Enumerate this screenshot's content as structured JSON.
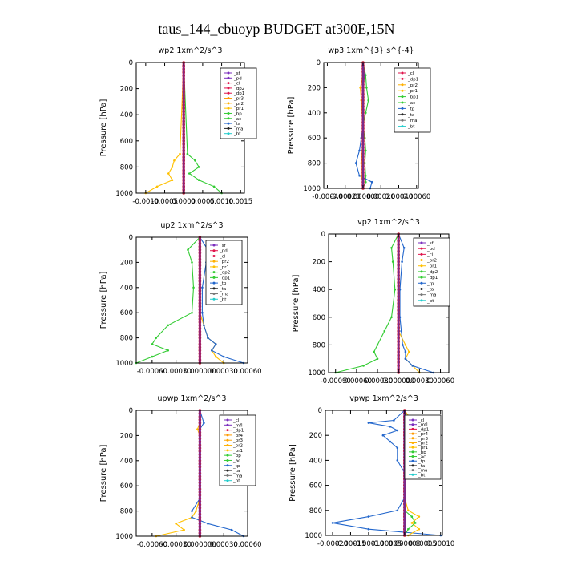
{
  "figure": {
    "title": "taus_144_cbuoyp  BUDGET at300E,15N"
  },
  "chart_data": [
    {
      "type": "line",
      "title": "wp2  1xm^2/s^3",
      "ylabel": "Pressure [hPa]",
      "xlim": [
        -0.00125,
        0.0016
      ],
      "ylim": [
        1000,
        0
      ],
      "xticks": [
        -0.001,
        -0.0005,
        0,
        0.0005,
        0.001,
        0.0015
      ],
      "xtick_labels": [
        "-0.0010",
        "-0.0005",
        "0.0000",
        "0.0005",
        "0.0010",
        "0.0015"
      ],
      "yticks": [
        0,
        200,
        400,
        600,
        800,
        1000
      ],
      "legend": [
        "_sf",
        "_pd",
        "_cl",
        "_dp2",
        "_dp1",
        "_pr3",
        "_pr2",
        "_pr1",
        "_bp",
        "_ac",
        "_ta",
        "_ma",
        "_bt"
      ],
      "colors": {
        "_sf": "#7b2fbe",
        "_pd": "#7b2fbe",
        "_cl": "#e0144c",
        "_dp2": "#e0144c",
        "_dp1": "#e0144c",
        "_pr3": "#ff9900",
        "_pr2": "#ffb000",
        "_pr1": "#ffc000",
        "_bp": "#33cc33",
        "_ac": "#33cc33",
        "_ta": "#2266cc",
        "_ma": "#222222",
        "_bt": "#22cccc"
      },
      "levels": [
        0,
        700,
        750,
        800,
        850,
        900,
        950,
        1000
      ],
      "series": [
        {
          "name": "_bp",
          "values": [
            0,
            0.0001,
            0.0003,
            0.0004,
            0.00015,
            0.0004,
            0.0008,
            0.001
          ]
        },
        {
          "name": "_pr1",
          "values": [
            0,
            -0.0001,
            -0.00025,
            -0.0003,
            -0.0004,
            -0.0003,
            -0.0007,
            -0.001
          ]
        },
        {
          "name": "_cl",
          "values": [
            0,
            0,
            0,
            0,
            0,
            0,
            0,
            0
          ]
        }
      ]
    },
    {
      "type": "line",
      "title": "wp3  1xm^{3} s^{-4}",
      "ylabel": "Pressure [hPa]",
      "xlim": [
        -0.00044,
        0.00062
      ],
      "ylim": [
        1000,
        0
      ],
      "xticks": [
        -0.0004,
        -0.0002,
        0,
        0.0002,
        0.0004,
        0.0006
      ],
      "xtick_labels": [
        "-0.00040",
        "-0.00020",
        "0.000000",
        "0.00020",
        "0.00040",
        "0.00060"
      ],
      "yticks": [
        0,
        200,
        400,
        600,
        800,
        1000
      ],
      "legend": [
        "_cl",
        "_dp1",
        "_pr2",
        "_pr1",
        "_bp1",
        "_ac",
        "_tp",
        "_ta",
        "_ma",
        "_bt"
      ],
      "colors": {
        "_cl": "#e0144c",
        "_dp1": "#e0144c",
        "_pr2": "#ffb000",
        "_pr1": "#ffc000",
        "_bp1": "#33cc33",
        "_ac": "#33cc33",
        "_tp": "#2266cc",
        "_ta": "#222222",
        "_ma": "#777777",
        "_bt": "#22cccc"
      },
      "levels": [
        0,
        100,
        200,
        300,
        400,
        500,
        600,
        700,
        800,
        900,
        950,
        1000
      ],
      "series": [
        {
          "name": "_ac",
          "values": [
            0,
            3e-05,
            4e-05,
            6e-05,
            3e-05,
            0,
            2e-05,
            3e-05,
            2e-05,
            3e-05,
            3e-05,
            0
          ]
        },
        {
          "name": "_tp",
          "values": [
            0,
            2e-05,
            0,
            0,
            0,
            0,
            -2e-05,
            -4e-05,
            -8e-05,
            -4e-05,
            0.0001,
            8e-05
          ]
        },
        {
          "name": "_pr1",
          "values": [
            0,
            0,
            -3e-05,
            -2e-05,
            -1e-05,
            0,
            0,
            -1e-05,
            -2e-05,
            -2e-05,
            0,
            0
          ]
        },
        {
          "name": "_cl",
          "values": [
            0,
            0,
            0,
            0,
            0,
            0,
            0,
            0,
            0,
            0,
            0,
            0
          ]
        }
      ]
    },
    {
      "type": "line",
      "title": "up2  1xm^2/s^3",
      "ylabel": "Pressure [hPa]",
      "xlim": [
        -0.0008,
        0.0006
      ],
      "ylim": [
        1000,
        0
      ],
      "xticks": [
        -0.0006,
        -0.0003,
        0,
        0.0003,
        0.0006
      ],
      "xtick_labels": [
        "-0.00060",
        "-0.00030",
        "0.000000",
        "0.00030",
        "0.00060"
      ],
      "yticks": [
        0,
        200,
        400,
        600,
        800,
        1000
      ],
      "legend": [
        "_sf",
        "_pd",
        "_cl",
        "_pr2",
        "_pr1",
        "_dp2",
        "_dp1",
        "_tp",
        "_ta",
        "_ma",
        "_bt"
      ],
      "colors": {
        "_sf": "#7b2fbe",
        "_pd": "#e0144c",
        "_cl": "#e0144c",
        "_pr2": "#ffb000",
        "_pr1": "#ffc000",
        "_dp2": "#33cc33",
        "_dp1": "#33cc33",
        "_tp": "#2266cc",
        "_ta": "#222222",
        "_ma": "#777777",
        "_bt": "#22cccc"
      },
      "levels": [
        0,
        100,
        200,
        400,
        600,
        700,
        800,
        850,
        900,
        950,
        1000
      ],
      "series": [
        {
          "name": "_dp1",
          "values": [
            0,
            -0.00015,
            -0.0001,
            -8e-05,
            -0.0001,
            -0.0004,
            -0.00055,
            -0.0006,
            -0.0004,
            -0.0006,
            -0.0008
          ]
        },
        {
          "name": "_pr1",
          "values": [
            0,
            0,
            0,
            0,
            0,
            5e-05,
            0.0001,
            0.0002,
            0.00015,
            0.0002,
            0.0003
          ]
        },
        {
          "name": "_tp",
          "values": [
            0,
            0.0001,
            8e-05,
            3e-05,
            3e-05,
            5e-05,
            0.0001,
            0.0002,
            0.00015,
            0.0003,
            0.00055
          ]
        },
        {
          "name": "_cl",
          "values": [
            0,
            0,
            0,
            0,
            0,
            0,
            0,
            0,
            0,
            0,
            0
          ]
        }
      ]
    },
    {
      "type": "line",
      "title": "vp2  1xm^2/s^3",
      "ylabel": "Pressure [hPa]",
      "xlim": [
        -0.001,
        0.00072
      ],
      "ylim": [
        1000,
        0
      ],
      "xticks": [
        -0.0009,
        -0.0006,
        -0.0003,
        0,
        0.0003,
        0.0006
      ],
      "xtick_labels": [
        "-0.00090",
        "-0.00060",
        "-0.00030",
        "0.000000",
        "0.00030",
        "0.00060"
      ],
      "yticks": [
        0,
        200,
        400,
        600,
        800,
        1000
      ],
      "legend": [
        "_sf",
        "_pd",
        "_cl",
        "_pr2",
        "_pr1",
        "_dp2",
        "_dp1",
        "_tp",
        "_ta",
        "_ma",
        "_bt"
      ],
      "colors": {
        "_sf": "#7b2fbe",
        "_pd": "#e0144c",
        "_cl": "#e0144c",
        "_pr2": "#ffb000",
        "_pr1": "#ffc000",
        "_dp2": "#33cc33",
        "_dp1": "#33cc33",
        "_tp": "#2266cc",
        "_ta": "#222222",
        "_ma": "#777777",
        "_bt": "#22cccc"
      },
      "levels": [
        0,
        100,
        200,
        400,
        600,
        700,
        800,
        850,
        900,
        950,
        1000
      ],
      "series": [
        {
          "name": "_dp1",
          "values": [
            0,
            -0.0001,
            -8e-05,
            -5e-05,
            -0.0001,
            -0.0002,
            -0.0003,
            -0.00035,
            -0.0003,
            -0.0005,
            -0.0009
          ]
        },
        {
          "name": "_pr1",
          "values": [
            0,
            0,
            0,
            0,
            0,
            0,
            0.0001,
            0.00015,
            0.0001,
            0.0002,
            0.0003
          ]
        },
        {
          "name": "_tp",
          "values": [
            0,
            8e-05,
            5e-05,
            2e-05,
            2e-05,
            4e-05,
            6e-05,
            0.0001,
            0.0001,
            0.0002,
            0.0005
          ]
        },
        {
          "name": "_cl",
          "values": [
            0,
            0,
            0,
            0,
            0,
            0,
            0,
            0,
            0,
            0,
            0
          ]
        }
      ]
    },
    {
      "type": "line",
      "title": "upwp  1xm^2/s^3",
      "ylabel": "Pressure [hPa]",
      "xlim": [
        -0.0008,
        0.0006
      ],
      "ylim": [
        1000,
        0
      ],
      "xticks": [
        -0.0006,
        -0.0003,
        0,
        0.0003,
        0.0006
      ],
      "xtick_labels": [
        "-0.00060",
        "-0.00030",
        "0.000000",
        "0.00030",
        "0.00060"
      ],
      "yticks": [
        0,
        200,
        400,
        600,
        800,
        1000
      ],
      "legend": [
        "_cl",
        "_mfl",
        "_dp1",
        "_pr4",
        "_pr3",
        "_pr2",
        "_pr1",
        "_bp",
        "_ac",
        "_tp",
        "_ta",
        "_ma",
        "_bt"
      ],
      "colors": {
        "_cl": "#7b2fbe",
        "_mfl": "#7b2fbe",
        "_dp1": "#e0144c",
        "_pr4": "#ff9900",
        "_pr3": "#ffa500",
        "_pr2": "#ffb000",
        "_pr1": "#ffc000",
        "_bp": "#33cc33",
        "_ac": "#33cc33",
        "_tp": "#2266cc",
        "_ta": "#222222",
        "_ma": "#777777",
        "_bt": "#22cccc"
      },
      "levels": [
        0,
        100,
        150,
        200,
        700,
        800,
        850,
        900,
        950,
        1000
      ],
      "series": [
        {
          "name": "_pr1",
          "values": [
            0,
            0,
            -3e-05,
            0,
            0,
            -5e-05,
            -0.0001,
            -0.0003,
            -0.0002,
            -0.00055
          ]
        },
        {
          "name": "_tp",
          "values": [
            0,
            5e-05,
            0,
            0,
            0,
            -0.0001,
            -0.0001,
            0.0001,
            0.0004,
            0.00055
          ]
        },
        {
          "name": "_cl",
          "values": [
            0,
            0,
            0,
            0,
            0,
            0,
            0,
            0,
            0,
            0
          ]
        }
      ]
    },
    {
      "type": "line",
      "title": "vpwp  1xm^2/s^3",
      "ylabel": "Pressure [hPa]",
      "xlim": [
        -0.00022,
        0.000105
      ],
      "ylim": [
        1000,
        0
      ],
      "xticks": [
        -0.0002,
        -0.00015,
        -0.0001,
        -5e-05,
        0,
        5e-05,
        0.0001
      ],
      "xtick_labels": [
        "-0.00020",
        "-0.00015",
        "-0.00010",
        "-0.00005",
        "0.000000",
        "0.00005",
        "0.00010"
      ],
      "yticks": [
        0,
        200,
        400,
        600,
        800,
        1000
      ],
      "legend": [
        "_cl",
        "_mfl",
        "_dp1",
        "_pr4",
        "_pr3",
        "_pr2",
        "_pr1",
        "_bp",
        "_ac",
        "_tp",
        "_ta",
        "_ma",
        "_bt"
      ],
      "colors": {
        "_cl": "#7b2fbe",
        "_mfl": "#7b2fbe",
        "_dp1": "#e0144c",
        "_pr4": "#ff9900",
        "_pr3": "#ffa500",
        "_pr2": "#ffb000",
        "_pr1": "#ffc000",
        "_bp": "#33cc33",
        "_ac": "#33cc33",
        "_tp": "#2266cc",
        "_ta": "#222222",
        "_ma": "#777777",
        "_bt": "#22cccc"
      },
      "levels": [
        0,
        80,
        100,
        130,
        160,
        200,
        250,
        300,
        400,
        500,
        700,
        800,
        850,
        900,
        950,
        1000
      ],
      "series": [
        {
          "name": "_tp",
          "values": [
            0,
            -3e-05,
            -0.0001,
            -4e-05,
            -2e-05,
            -6e-05,
            -4e-05,
            -2e-05,
            -2e-05,
            0,
            0,
            -2e-05,
            -0.0001,
            -0.0002,
            -0.0001,
            0.0001
          ]
        },
        {
          "name": "_pr1",
          "values": [
            0,
            2e-05,
            4e-05,
            2e-05,
            3e-05,
            1e-05,
            2e-05,
            0,
            0,
            0,
            0,
            1e-05,
            4e-05,
            2e-05,
            4e-05,
            1e-05
          ]
        },
        {
          "name": "_ac",
          "values": [
            0,
            1e-05,
            2e-05,
            1e-05,
            2e-05,
            1e-05,
            1e-05,
            0,
            0,
            0,
            0,
            0,
            2e-05,
            3e-05,
            1e-05,
            0
          ]
        },
        {
          "name": "_cl",
          "values": [
            0,
            0,
            0,
            0,
            0,
            0,
            0,
            0,
            0,
            0,
            0,
            0,
            0,
            0,
            0,
            0
          ]
        }
      ]
    }
  ]
}
